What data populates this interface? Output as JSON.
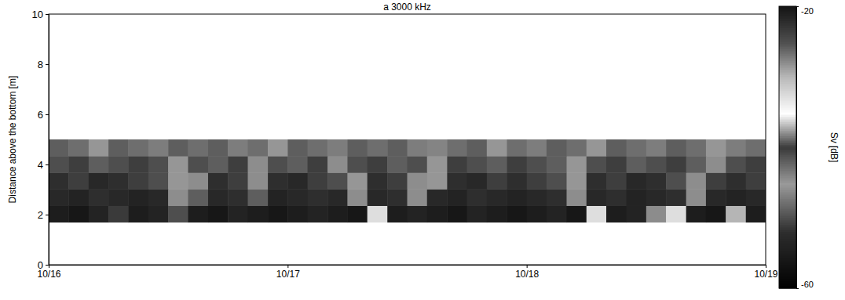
{
  "chart_data": {
    "type": "heatmap",
    "title": "a 3000 kHz",
    "y_label": "Distance above the bottom [m]",
    "xlim": [
      16,
      19
    ],
    "xticks": [
      {
        "value": 16,
        "label": "10/16"
      },
      {
        "value": 17,
        "label": "10/17"
      },
      {
        "value": 18,
        "label": "10/18"
      },
      {
        "value": 19,
        "label": "10/19"
      }
    ],
    "ylim": [
      0,
      10
    ],
    "yticks": [
      0,
      2,
      4,
      6,
      8,
      10
    ],
    "x_edges": [
      16,
      16.083,
      16.167,
      16.25,
      16.333,
      16.417,
      16.5,
      16.583,
      16.667,
      16.75,
      16.833,
      16.917,
      17,
      17.083,
      17.167,
      17.25,
      17.333,
      17.417,
      17.5,
      17.583,
      17.667,
      17.75,
      17.833,
      17.917,
      18,
      18.083,
      18.167,
      18.25,
      18.333,
      18.417,
      18.5,
      18.583,
      18.667,
      18.75,
      18.833,
      18.917,
      19
    ],
    "y_edges": [
      1.7,
      2.36,
      3.02,
      3.68,
      4.34,
      5.0
    ],
    "cells": [
      [
        -55,
        -56,
        -54,
        -40,
        -55,
        -54,
        -50,
        -55,
        -56,
        -54,
        -55,
        -56,
        -55,
        -54,
        -55,
        -56,
        -36,
        -55,
        -54,
        -55,
        -56,
        -54,
        -55,
        -56,
        -55,
        -54,
        -56,
        -36,
        -55,
        -54,
        -38,
        -36,
        -55,
        -56,
        -37,
        -55
      ],
      [
        -53,
        -54,
        -52,
        -53,
        -54,
        -53,
        -46,
        -49,
        -53,
        -52,
        -49,
        -54,
        -53,
        -52,
        -53,
        -46,
        -53,
        -52,
        -46,
        -53,
        -54,
        -52,
        -53,
        -54,
        -53,
        -52,
        -46,
        -53,
        -52,
        -54,
        -53,
        -52,
        -46,
        -53,
        -54,
        -53
      ],
      [
        -52,
        -51,
        -53,
        -52,
        -51,
        -50,
        -45,
        -46,
        -52,
        -51,
        -46,
        -52,
        -53,
        -51,
        -50,
        -45,
        -52,
        -51,
        -46,
        -45,
        -52,
        -53,
        -51,
        -52,
        -51,
        -50,
        -45,
        -52,
        -51,
        -53,
        -52,
        -50,
        -46,
        -51,
        -52,
        -51
      ],
      [
        -50,
        -51,
        -49,
        -50,
        -51,
        -50,
        -45,
        -50,
        -49,
        -51,
        -46,
        -50,
        -49,
        -51,
        -46,
        -50,
        -51,
        -49,
        -50,
        -45,
        -51,
        -50,
        -49,
        -51,
        -50,
        -49,
        -45,
        -50,
        -51,
        -49,
        -50,
        -51,
        -49,
        -46,
        -50,
        -51
      ],
      [
        -49,
        -48,
        -45,
        -49,
        -48,
        -47,
        -49,
        -48,
        -49,
        -47,
        -48,
        -45,
        -49,
        -48,
        -47,
        -49,
        -48,
        -49,
        -47,
        -44,
        -48,
        -49,
        -45,
        -48,
        -47,
        -49,
        -48,
        -45,
        -49,
        -48,
        -47,
        -49,
        -48,
        -45,
        -47,
        -48
      ]
    ],
    "colorbar_range": [
      -60,
      -20
    ],
    "colorbar_ticks": [
      -60,
      -20
    ],
    "colorbar_label": "Sv [dB]"
  }
}
